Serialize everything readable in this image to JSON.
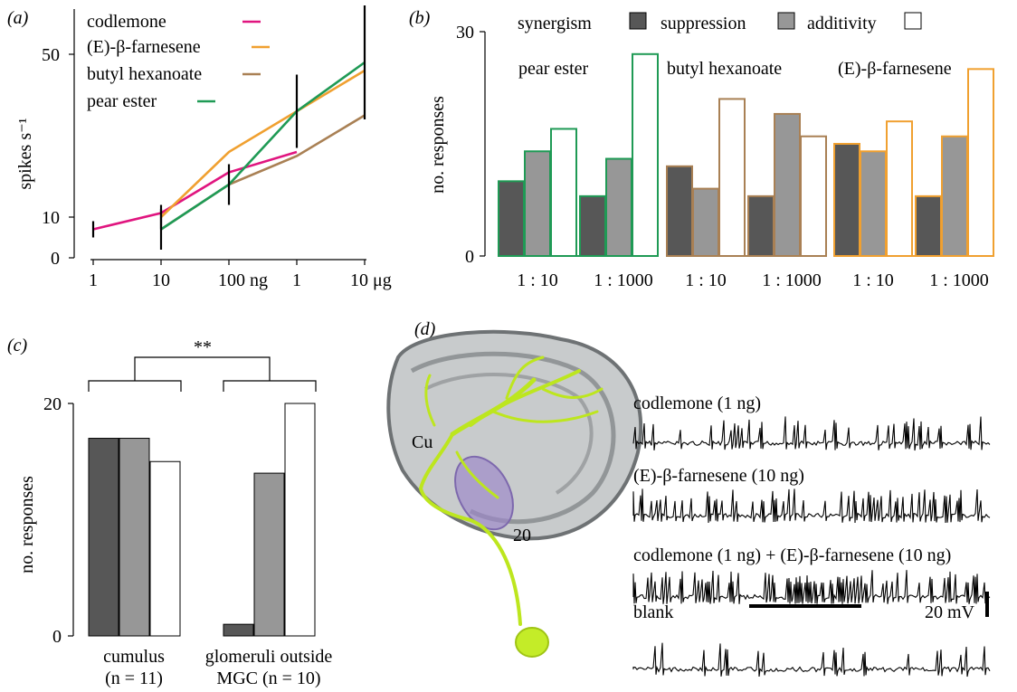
{
  "panel_labels": {
    "a": "(a)",
    "b": "(b)",
    "c": "(c)",
    "d": "(d)"
  },
  "colors": {
    "codlemone": "#e0157f",
    "farnesene": "#f0a030",
    "butyl_hexanoate": "#a98054",
    "pear_ester": "#1f9a55",
    "synergism": "#575757",
    "suppression": "#979797",
    "additivity": "#ffffff",
    "neuron": "#bde61e",
    "brain": "#8c8f92",
    "glomerulus": "#9b86c9"
  },
  "chart_data": [
    {
      "id": "a",
      "type": "line",
      "ylabel": "spikes s⁻¹",
      "x_ticks": [
        "1",
        "10",
        "100 ng",
        "1",
        "10 μg"
      ],
      "y_ticks": [
        0,
        10,
        50
      ],
      "ylim": [
        0,
        55
      ],
      "series": [
        {
          "name": "codlemone",
          "color_key": "codlemone",
          "values": [
            7,
            11,
            21,
            26,
            null
          ],
          "error": [
            2,
            0,
            0,
            0,
            null
          ]
        },
        {
          "name": "(E)-β-farnesene",
          "color_key": "farnesene",
          "values": [
            null,
            10,
            26,
            36,
            46
          ],
          "error": [
            null,
            3,
            0,
            0,
            0
          ]
        },
        {
          "name": "butyl hexanoate",
          "color_key": "butyl_hexanoate",
          "values": [
            null,
            7,
            18,
            25,
            35
          ],
          "error": [
            null,
            0,
            0,
            0,
            0
          ]
        },
        {
          "name": "pear ester",
          "color_key": "pear_ester",
          "values": [
            null,
            7,
            18,
            36,
            48
          ],
          "error": [
            null,
            5,
            5,
            9,
            14
          ]
        }
      ]
    },
    {
      "id": "b",
      "type": "bar",
      "ylabel": "no. responses",
      "ylim": [
        0,
        30
      ],
      "y_ticks": [
        0,
        30
      ],
      "legend": [
        "synergism",
        "suppression",
        "additivity"
      ],
      "group_categories": [
        "1 : 10",
        "1 : 1000"
      ],
      "groups": [
        {
          "name": "pear ester",
          "color_key": "pear_ester",
          "series": [
            {
              "name": "synergism",
              "values": [
                10,
                8
              ]
            },
            {
              "name": "suppression",
              "values": [
                14,
                13
              ]
            },
            {
              "name": "additivity",
              "values": [
                17,
                27
              ]
            }
          ]
        },
        {
          "name": "butyl hexanoate",
          "color_key": "butyl_hexanoate",
          "series": [
            {
              "name": "synergism",
              "values": [
                12,
                8
              ]
            },
            {
              "name": "suppression",
              "values": [
                9,
                19
              ]
            },
            {
              "name": "additivity",
              "values": [
                21,
                16
              ]
            }
          ]
        },
        {
          "name": "(E)-β-farnesene",
          "color_key": "farnesene",
          "series": [
            {
              "name": "synergism",
              "values": [
                15,
                8
              ]
            },
            {
              "name": "suppression",
              "values": [
                14,
                16
              ]
            },
            {
              "name": "additivity",
              "values": [
                18,
                25
              ]
            }
          ]
        }
      ]
    },
    {
      "id": "c",
      "type": "bar",
      "ylabel": "no. responses",
      "ylim": [
        0,
        20
      ],
      "y_ticks": [
        0,
        20
      ],
      "significance": "**",
      "categories": [
        "cumulus",
        "glomeruli outside"
      ],
      "category_sublabels": [
        "(n = 11)",
        "MGC (n = 10)"
      ],
      "series": [
        {
          "name": "synergism",
          "values": [
            17,
            1
          ]
        },
        {
          "name": "suppression",
          "values": [
            17,
            14
          ]
        },
        {
          "name": "additivity",
          "values": [
            15,
            20
          ]
        }
      ]
    }
  ],
  "panel_d": {
    "labels": {
      "cumulus": "Cu",
      "glomerulus": "20"
    },
    "traces": [
      {
        "label": "codlemone (1 ng)",
        "rate": 0.35,
        "burst": false
      },
      {
        "label": "(E)-β-farnesene (10 ng)",
        "rate": 0.55,
        "burst": false
      },
      {
        "label": "codlemone (1 ng) + (E)-β-farnesene (10 ng)",
        "rate": 0.75,
        "burst": true
      },
      {
        "label": "blank",
        "rate": 0.2,
        "burst": false
      }
    ],
    "scale_bar_voltage": "20 mV"
  }
}
